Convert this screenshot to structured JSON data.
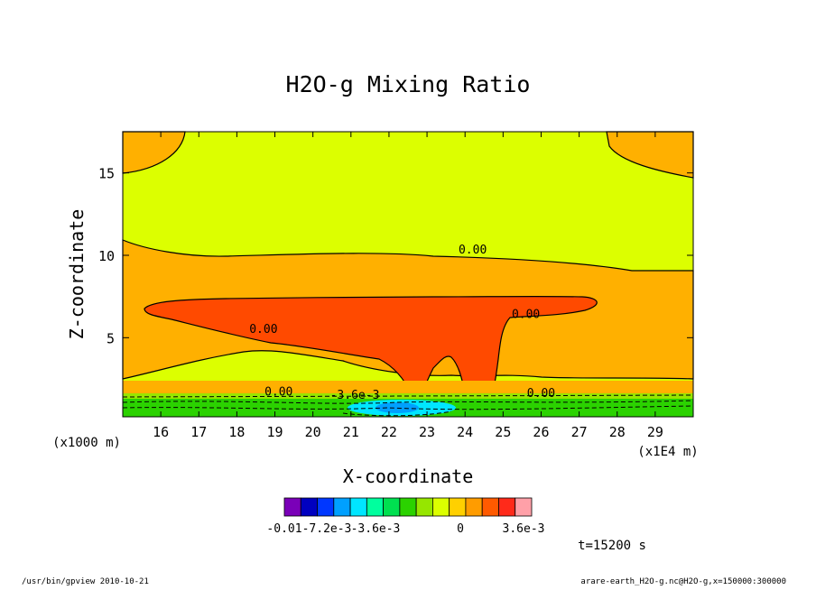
{
  "chart_data": {
    "type": "contour",
    "title": "H2O-g Mixing Ratio",
    "xlabel": "X-coordinate",
    "ylabel": "Z-coordinate",
    "x_unit": "(x1E4 m)",
    "y_unit": "(x1000 m)",
    "xlim": [
      15,
      30
    ],
    "ylim": [
      0.2,
      17.5
    ],
    "x_ticks": [
      16,
      17,
      18,
      19,
      20,
      21,
      22,
      23,
      24,
      25,
      26,
      27,
      28,
      29
    ],
    "y_ticks": [
      5,
      10,
      15
    ],
    "contour_labels": [
      {
        "text": "0.00",
        "x": 24.2,
        "y": 10.1
      },
      {
        "text": "0.00",
        "x": 18.7,
        "y": 5.3
      },
      {
        "text": "0.00",
        "x": 25.6,
        "y": 6.2
      },
      {
        "text": "0.00",
        "x": 19.1,
        "y": 1.5
      },
      {
        "text": "0.00",
        "x": 26.0,
        "y": 1.4
      },
      {
        "text": "-3.6e-3",
        "x": 21.1,
        "y": 1.3
      }
    ],
    "colorbar": {
      "colors": [
        "#7a00b8",
        "#0000c0",
        "#0037ff",
        "#00a0ff",
        "#00e6ff",
        "#00ff9e",
        "#00e050",
        "#2bd200",
        "#96e600",
        "#dcff00",
        "#ffd000",
        "#ff9c00",
        "#ff5a00",
        "#ff2a1a",
        "#ffa0a8"
      ],
      "tick_labels": [
        "-0.01",
        "-7.2e-3",
        "-3.6e-3",
        "0",
        "3.6e-3"
      ]
    },
    "annotations": [
      "t=15200 s"
    ]
  },
  "footer": {
    "left": "/usr/bin/gpview   2010-10-21",
    "right": "arare-earth_H2O-g.nc@H2O-g,x=150000:300000"
  }
}
